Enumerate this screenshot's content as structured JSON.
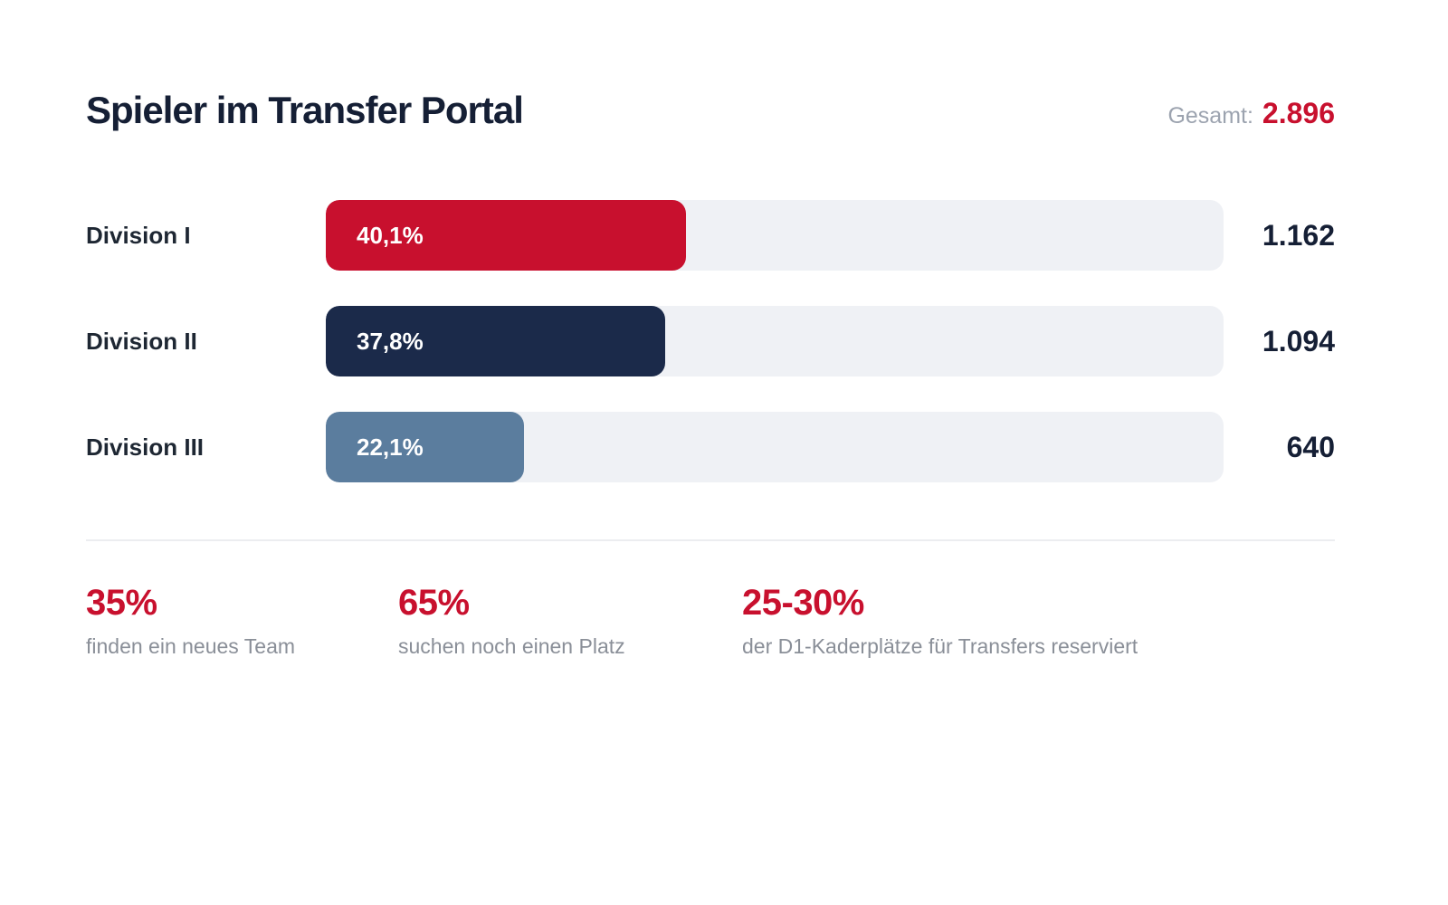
{
  "header": {
    "title": "Spieler im Transfer Portal",
    "total_label": "Gesamt:",
    "total_value": "2.896"
  },
  "chart_data": {
    "type": "bar",
    "orientation": "horizontal",
    "title": "Spieler im Transfer Portal",
    "categories": [
      "Division I",
      "Division II",
      "Division III"
    ],
    "values": [
      40.1,
      37.8,
      22.1
    ],
    "value_labels": [
      "40,1%",
      "37,8%",
      "22,1%"
    ],
    "counts": [
      1162,
      1094,
      640
    ],
    "count_labels": [
      "1.162",
      "1.094",
      "640"
    ],
    "total": 2896,
    "xlim": [
      0,
      100
    ],
    "bar_colors": [
      "#C8102E",
      "#1B2A4A",
      "#5B7D9E"
    ],
    "track_color": "#EFF1F5",
    "grid": false,
    "legend": "none"
  },
  "stats": [
    {
      "value": "35%",
      "caption": "finden ein neues Team"
    },
    {
      "value": "65%",
      "caption": "suchen noch einen Platz"
    },
    {
      "value": "25-30%",
      "caption": "der D1-Kaderplätze für Transfers reserviert"
    }
  ],
  "colors": {
    "accent_red": "#C8102E",
    "navy": "#1B2A4A",
    "steel_blue": "#5B7D9E",
    "track": "#EFF1F5",
    "text_dark": "#151F35",
    "text_gray": "#9CA3AF",
    "caption_gray": "#8A8F98",
    "divider": "#ECEDF0",
    "background": "#FFFFFF"
  }
}
